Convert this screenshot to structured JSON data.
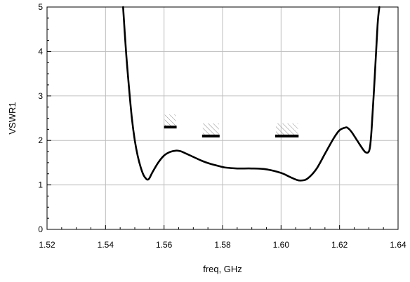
{
  "chart_data": {
    "type": "line",
    "title": "",
    "xlabel": "freq, GHz",
    "ylabel": "VSWR1",
    "xlim": [
      1.52,
      1.64
    ],
    "ylim": [
      0,
      5
    ],
    "xticks": [
      "1.52",
      "1.54",
      "1.56",
      "1.58",
      "1.60",
      "1.62",
      "1.64"
    ],
    "yticks": [
      "0",
      "1",
      "2",
      "3",
      "4",
      "5"
    ],
    "xtick_values": [
      1.52,
      1.54,
      1.56,
      1.58,
      1.6,
      1.62,
      1.64
    ],
    "ytick_values": [
      0,
      1,
      2,
      3,
      4,
      5
    ],
    "grid": true,
    "series": [
      {
        "color": "#000000",
        "x": [
          1.546,
          1.547,
          1.548,
          1.549,
          1.55,
          1.551,
          1.552,
          1.553,
          1.554,
          1.5545,
          1.555,
          1.556,
          1.558,
          1.56,
          1.562,
          1.564,
          1.5655,
          1.567,
          1.57,
          1.573,
          1.576,
          1.579,
          1.581,
          1.585,
          1.59,
          1.595,
          1.6,
          1.603,
          1.6055,
          1.607,
          1.609,
          1.612,
          1.615,
          1.618,
          1.62,
          1.622,
          1.6228,
          1.624,
          1.626,
          1.628,
          1.629,
          1.63,
          1.6305,
          1.631,
          1.632,
          1.633,
          1.6336
        ],
        "values": [
          5.0,
          4.0,
          3.2,
          2.5,
          2.0,
          1.65,
          1.4,
          1.22,
          1.13,
          1.12,
          1.15,
          1.28,
          1.5,
          1.66,
          1.74,
          1.77,
          1.76,
          1.72,
          1.63,
          1.54,
          1.47,
          1.42,
          1.39,
          1.37,
          1.37,
          1.35,
          1.27,
          1.18,
          1.11,
          1.1,
          1.14,
          1.35,
          1.7,
          2.05,
          2.23,
          2.29,
          2.28,
          2.2,
          2.0,
          1.8,
          1.73,
          1.75,
          1.9,
          2.3,
          3.4,
          4.6,
          5.0
        ]
      }
    ],
    "goal_markers": [
      {
        "x_start": 1.56,
        "x_end": 1.5643,
        "value": 2.3
      },
      {
        "x_start": 1.573,
        "x_end": 1.579,
        "value": 2.1
      },
      {
        "x_start": 1.598,
        "x_end": 1.606,
        "value": 2.1
      }
    ]
  }
}
